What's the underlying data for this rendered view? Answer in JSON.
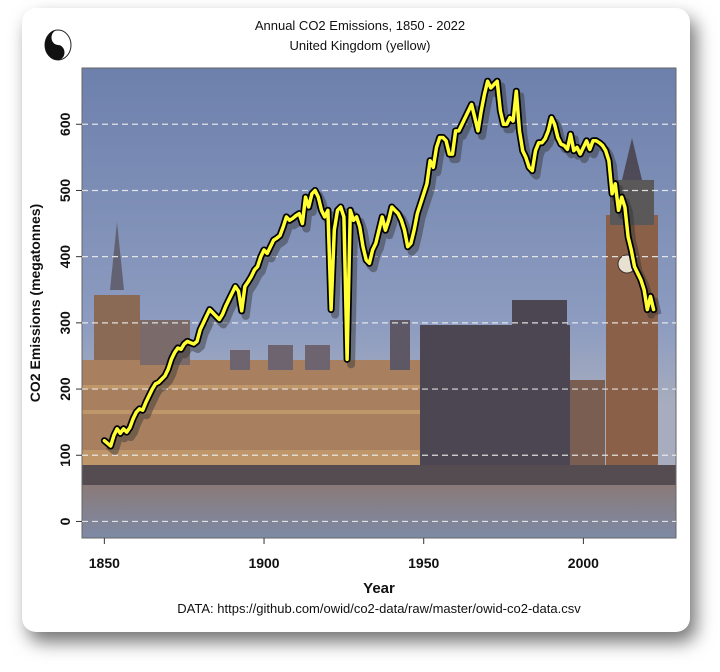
{
  "chart_data": {
    "type": "line",
    "title": "Annual CO2 Emissions, 1850 - 2022",
    "subtitle": "United Kingdom (yellow)",
    "xlabel": "Year",
    "ylabel": "CO2 Emissions (megatonnes)",
    "caption": "DATA: https://github.com/owid/co2-data/raw/master/owid-co2-data.csv",
    "xlim": [
      1843,
      2029
    ],
    "ylim": [
      -25,
      685
    ],
    "x_ticks": [
      1850,
      1900,
      1950,
      2000
    ],
    "x_tick_labels": [
      "1850",
      "1900",
      "1950",
      "2000"
    ],
    "y_ticks": [
      0,
      100,
      200,
      300,
      400,
      500,
      600
    ],
    "y_tick_labels": [
      "0",
      "100",
      "200",
      "300",
      "400",
      "500",
      "600"
    ],
    "grid": "horizontal dashed",
    "series": [
      {
        "name": "United Kingdom",
        "color": "#ffff33",
        "x_start": 1850,
        "values": [
          122,
          118,
          114,
          130,
          140,
          133,
          140,
          135,
          142,
          155,
          165,
          170,
          168,
          180,
          190,
          200,
          208,
          210,
          215,
          220,
          230,
          245,
          255,
          262,
          260,
          268,
          272,
          270,
          268,
          272,
          290,
          300,
          310,
          320,
          315,
          310,
          305,
          313,
          325,
          335,
          345,
          355,
          348,
          318,
          355,
          362,
          370,
          380,
          385,
          400,
          410,
          405,
          415,
          425,
          428,
          432,
          445,
          460,
          455,
          458,
          462,
          465,
          450,
          490,
          475,
          495,
          500,
          490,
          470,
          460,
          470,
          320,
          440,
          470,
          475,
          460,
          245,
          470,
          455,
          460,
          445,
          415,
          395,
          390,
          410,
          420,
          440,
          460,
          440,
          455,
          475,
          470,
          465,
          455,
          440,
          415,
          420,
          440,
          465,
          480,
          495,
          510,
          545,
          535,
          565,
          580,
          580,
          575,
          555,
          555,
          590,
          590,
          600,
          610,
          620,
          630,
          610,
          590,
          620,
          645,
          665,
          655,
          660,
          665,
          620,
          600,
          600,
          610,
          605,
          650,
          590,
          560,
          550,
          535,
          530,
          560,
          572,
          572,
          578,
          590,
          610,
          600,
          580,
          570,
          568,
          562,
          585,
          560,
          565,
          555,
          565,
          575,
          562,
          575,
          575,
          572,
          568,
          560,
          545,
          495,
          510,
          470,
          490,
          475,
          430,
          410,
          385,
          375,
          365,
          350,
          320,
          340,
          320
        ]
      }
    ]
  }
}
